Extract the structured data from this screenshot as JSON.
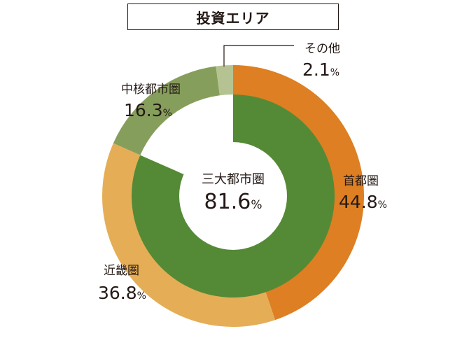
{
  "chart_data": {
    "type": "pie",
    "title": "投資エリア",
    "unit": "%",
    "outer_ring": [
      {
        "name": "首都圏",
        "value": 44.8,
        "color": "#DD7F22"
      },
      {
        "name": "近畿圏",
        "value": 36.8,
        "color": "#E5AE56"
      },
      {
        "name": "中核都市圏",
        "value": 16.3,
        "color": "#869E5B"
      },
      {
        "name": "その他",
        "value": 2.1,
        "color": "#B5C393"
      }
    ],
    "inner_ring": [
      {
        "name": "三大都市圏",
        "value": 81.6,
        "color": "#548A36"
      },
      {
        "name": "",
        "value": 18.4,
        "color": "#FFFFFF"
      }
    ],
    "labels": [
      {
        "name": "首都圏",
        "value": "44.8",
        "unit": "%"
      },
      {
        "name": "近畿圏",
        "value": "36.8",
        "unit": "%"
      },
      {
        "name": "中核都市圏",
        "value": "16.3",
        "unit": "%"
      },
      {
        "name": "その他",
        "value": "2.1",
        "unit": "%"
      }
    ],
    "center_label": {
      "name": "三大都市圏",
      "value": "81.6",
      "unit": "%"
    }
  }
}
